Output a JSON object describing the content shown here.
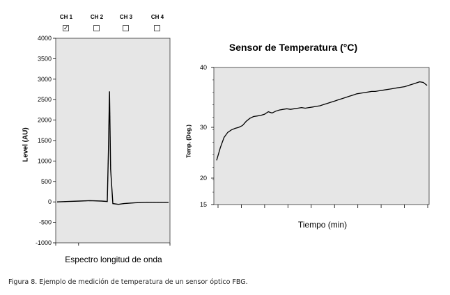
{
  "channels": [
    {
      "label": "CH 1",
      "checked": true
    },
    {
      "label": "CH 2",
      "checked": false
    },
    {
      "label": "CH 3",
      "checked": false
    },
    {
      "label": "CH 4",
      "checked": false
    }
  ],
  "caption": "Figura 8. Ejemplo de medición de temperatura de un sensor óptico FBG.",
  "chart_data": [
    {
      "type": "line",
      "title": "",
      "xlabel": "Espectro longitud de onda",
      "ylabel": "Level (AU)",
      "ylim": [
        -1000,
        4000
      ],
      "yticks": [
        -1000,
        -500,
        0,
        500,
        1000,
        1500,
        2000,
        2500,
        3000,
        3500,
        4000
      ],
      "grid": false,
      "series": [
        {
          "x": [
            0,
            10,
            20,
            30,
            40,
            45,
            46,
            47,
            48,
            50,
            55,
            60,
            70,
            80,
            90,
            100
          ],
          "values": [
            0,
            10,
            20,
            30,
            20,
            10,
            1200,
            2700,
            800,
            -40,
            -60,
            -40,
            -20,
            -10,
            -10,
            -10
          ]
        }
      ]
    },
    {
      "type": "line",
      "title": "Sensor de Temperatura (°C)",
      "xlabel": "Tiempo (min)",
      "ylabel": "Temp. (Deg.)",
      "ylim": [
        15,
        40
      ],
      "yticks": [
        15,
        20,
        30,
        40
      ],
      "grid": false,
      "series": [
        {
          "x": [
            0,
            1,
            2,
            3,
            4,
            5,
            6,
            7,
            8,
            9,
            10,
            11,
            12,
            13,
            14,
            15,
            16,
            17,
            18,
            19,
            20,
            21,
            22,
            23,
            24,
            25,
            26,
            27,
            28,
            29,
            30,
            31,
            32,
            33,
            34,
            35,
            36,
            37,
            38,
            39,
            40,
            41,
            42,
            43,
            44,
            45,
            46,
            47,
            48,
            49,
            50,
            51,
            52,
            53,
            54,
            55,
            56,
            57
          ],
          "values": [
            23.5,
            26,
            28,
            29,
            29.5,
            29.8,
            30,
            30.3,
            31,
            31.5,
            31.8,
            31.9,
            32,
            32.2,
            32.6,
            32.4,
            32.7,
            32.9,
            33,
            33.1,
            33,
            33.1,
            33.2,
            33.3,
            33.2,
            33.3,
            33.4,
            33.5,
            33.6,
            33.8,
            34,
            34.2,
            34.4,
            34.6,
            34.8,
            35,
            35.2,
            35.4,
            35.6,
            35.7,
            35.8,
            35.9,
            36,
            36,
            36.1,
            36.2,
            36.3,
            36.4,
            36.5,
            36.6,
            36.7,
            36.8,
            37,
            37.2,
            37.4,
            37.6,
            37.5,
            37
          ]
        }
      ]
    }
  ]
}
